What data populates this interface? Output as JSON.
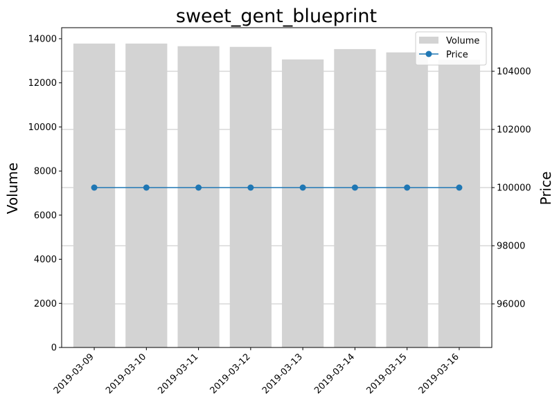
{
  "chart_data": {
    "type": "bar",
    "title": "sweet_gent_blueprint",
    "categories": [
      "2019-03-09",
      "2019-03-10",
      "2019-03-11",
      "2019-03-12",
      "2019-03-13",
      "2019-03-14",
      "2019-03-15",
      "2019-03-16"
    ],
    "series": [
      {
        "name": "Volume",
        "type": "bar",
        "axis": "left",
        "color": "#d3d3d3",
        "values": [
          13780,
          13780,
          13660,
          13630,
          13060,
          13530,
          13380,
          13050
        ]
      },
      {
        "name": "Price",
        "type": "line",
        "axis": "right",
        "color": "#1f77b4",
        "marker": "circle",
        "values": [
          100000,
          100000,
          100000,
          100000,
          100000,
          100000,
          100000,
          100000
        ]
      }
    ],
    "y_left": {
      "label": "Volume",
      "lim": [
        0,
        14500
      ],
      "ticks": [
        0,
        2000,
        4000,
        6000,
        8000,
        10000,
        12000,
        14000
      ]
    },
    "y_right": {
      "label": "Price",
      "lim": [
        94500,
        105500
      ],
      "ticks": [
        96000,
        98000,
        100000,
        102000,
        104000
      ]
    },
    "grid": {
      "axis": "right-y",
      "on": true
    },
    "legend": {
      "placement": "upper right",
      "entries": [
        "Volume",
        "Price"
      ]
    }
  }
}
